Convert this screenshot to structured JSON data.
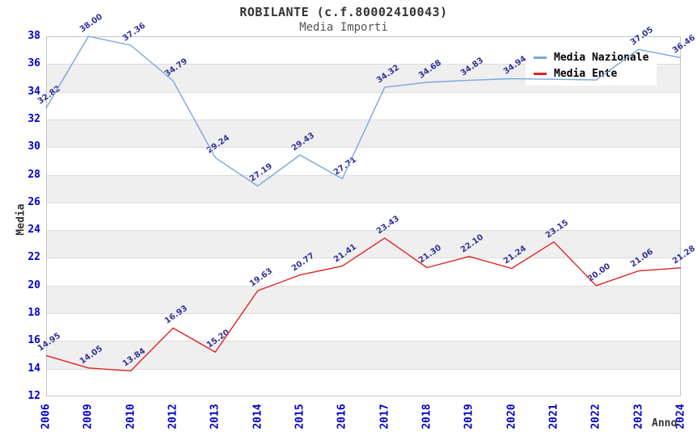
{
  "chart_data": {
    "type": "line",
    "title": "ROBILANTE (c.f.80002410043)",
    "subtitle": "Media Importi",
    "xlabel": "Anno",
    "ylabel": "Media",
    "ylim": [
      12,
      38
    ],
    "y_tick_step": 2,
    "grid": "alternating horizontal bands",
    "legend_position": "top-right",
    "categories": [
      "2006",
      "2009",
      "2010",
      "2012",
      "2013",
      "2014",
      "2015",
      "2016",
      "2017",
      "2018",
      "2019",
      "2020",
      "2021",
      "2022",
      "2023",
      "2024"
    ],
    "series": [
      {
        "name": "Media Nazionale",
        "color": "#78a7dc",
        "values": [
          32.82,
          38.0,
          37.36,
          34.79,
          29.24,
          27.19,
          29.43,
          27.71,
          34.32,
          34.68,
          34.83,
          34.94,
          34.9,
          34.85,
          37.05,
          36.46
        ],
        "labels_hidden_behind_legend": [
          "2021",
          "2022"
        ]
      },
      {
        "name": "Media Ente",
        "color": "#e02222",
        "values": [
          14.95,
          14.05,
          13.84,
          16.93,
          15.2,
          19.63,
          20.77,
          21.41,
          23.43,
          21.3,
          22.1,
          21.24,
          23.15,
          20.0,
          21.06,
          21.28
        ],
        "labels_hidden_behind_legend": []
      }
    ],
    "colors": {
      "tick_label": "#0000cc",
      "data_label": "#333399",
      "band": "#efefef",
      "grid_line": "#dddddd",
      "plot_border": "#c6c6c6",
      "title": "#333333",
      "subtitle": "#555555"
    }
  }
}
